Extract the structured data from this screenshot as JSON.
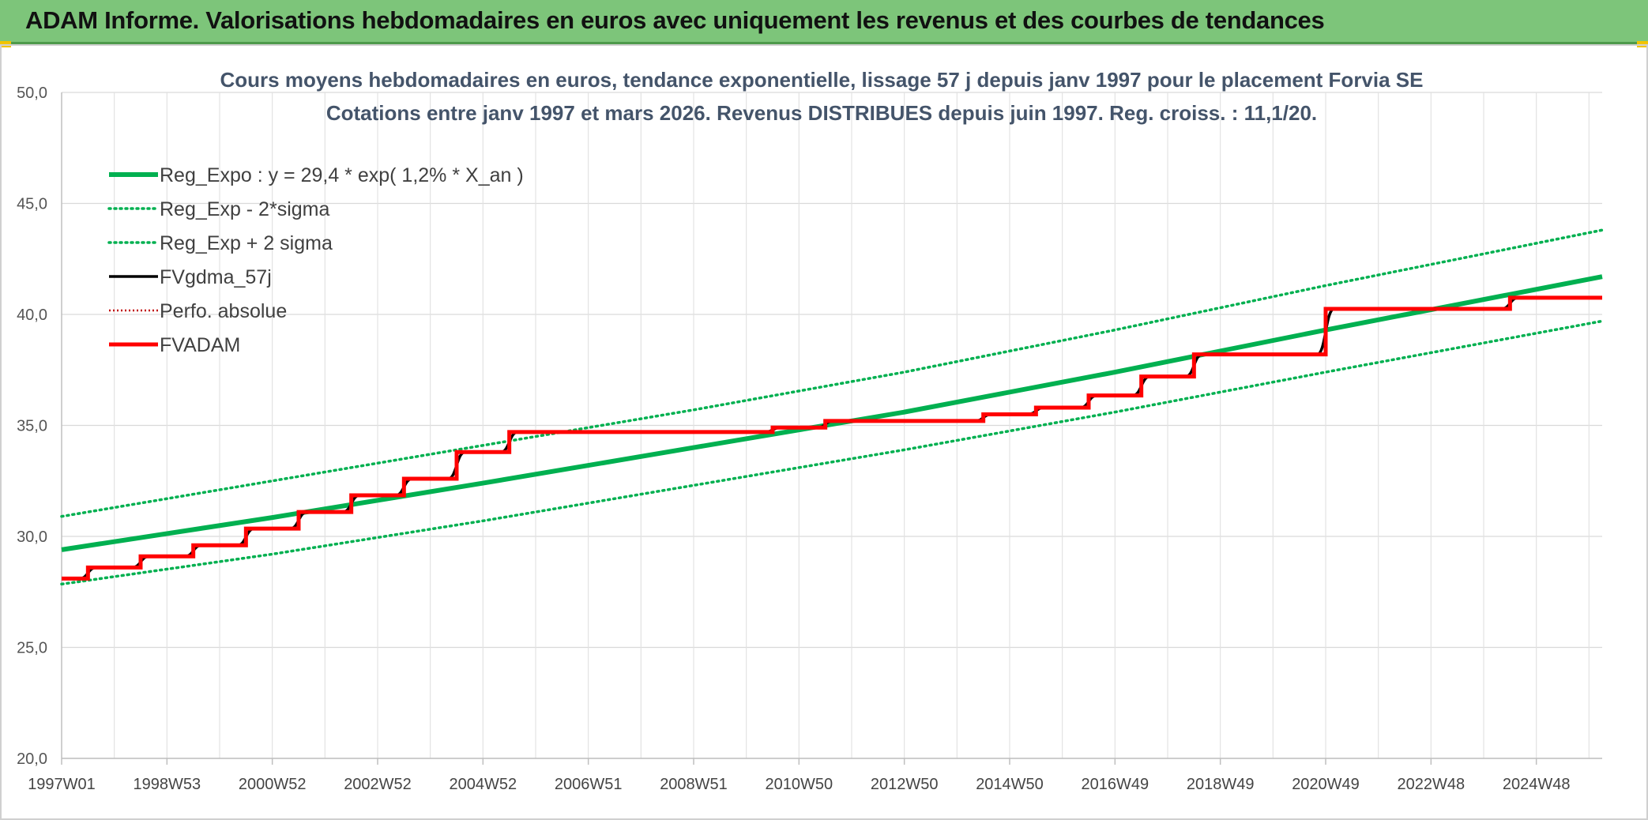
{
  "banner": {
    "title": "ADAM Informe. Valorisations hebdomadaires en euros avec uniquement les revenus et des courbes de tendances"
  },
  "colors": {
    "banner": "#7dc57a",
    "reg": "#00b050",
    "black": "#000000",
    "red": "#ff0000",
    "perfo": "#c00000"
  },
  "chart_data": {
    "type": "line",
    "title": "Cours moyens hebdomadaires en euros, tendance exponentielle, lissage 57 j depuis janv 1997 pour le placement Forvia SE",
    "subtitle": "Cotations entre janv 1997 et mars 2026. Revenus DISTRIBUES depuis juin 1997. Reg. croiss. : 11,1/20.",
    "xlabel": "",
    "ylabel": "",
    "ylim": [
      20,
      50
    ],
    "yticks": [
      "20,0",
      "25,0",
      "30,0",
      "35,0",
      "40,0",
      "45,0",
      "50,0"
    ],
    "xlim": [
      1997.0,
      2026.25
    ],
    "xticks": [
      {
        "year": 1997,
        "label": "1997W01"
      },
      {
        "year": 1999,
        "label": "1998W53"
      },
      {
        "year": 2001,
        "label": "2000W52"
      },
      {
        "year": 2003,
        "label": "2002W52"
      },
      {
        "year": 2005,
        "label": "2004W52"
      },
      {
        "year": 2007,
        "label": "2006W51"
      },
      {
        "year": 2009,
        "label": "2008W51"
      },
      {
        "year": 2011,
        "label": "2010W50"
      },
      {
        "year": 2013,
        "label": "2012W50"
      },
      {
        "year": 2015,
        "label": "2014W50"
      },
      {
        "year": 2017,
        "label": "2016W49"
      },
      {
        "year": 2019,
        "label": "2018W49"
      },
      {
        "year": 2021,
        "label": "2020W49"
      },
      {
        "year": 2023,
        "label": "2022W48"
      },
      {
        "year": 2025,
        "label": "2024W48"
      }
    ],
    "grid": true,
    "legend": "top-left",
    "series": [
      {
        "name": "Reg_Expo : y = 29,4 * exp( 1,2% *  X_an )",
        "style": "thick-green",
        "x": [
          1997.0,
          2001.0,
          2005.0,
          2009.0,
          2013.0,
          2017.0,
          2021.0,
          2026.25
        ],
        "values": [
          29.4,
          30.85,
          32.4,
          34.0,
          35.6,
          37.4,
          39.3,
          41.7
        ]
      },
      {
        "name": "Reg_Exp - 2*sigma",
        "style": "dotted-green",
        "x": [
          1997.0,
          2001.0,
          2005.0,
          2009.0,
          2013.0,
          2017.0,
          2021.0,
          2026.25
        ],
        "values": [
          27.85,
          29.2,
          30.7,
          32.3,
          33.9,
          35.6,
          37.4,
          39.7
        ]
      },
      {
        "name": "Reg_Exp + 2 sigma",
        "style": "dotted-green",
        "x": [
          1997.0,
          2001.0,
          2005.0,
          2009.0,
          2013.0,
          2017.0,
          2021.0,
          2026.25
        ],
        "values": [
          30.9,
          32.5,
          34.1,
          35.7,
          37.4,
          39.3,
          41.3,
          43.8
        ]
      },
      {
        "name": "FVgdma_57j",
        "style": "black",
        "steps": "smooth",
        "x": [
          1997.0,
          1997.5,
          1998.5,
          1999.5,
          2000.5,
          2001.5,
          2002.5,
          2003.5,
          2004.5,
          2005.5,
          2010.5,
          2011.5,
          2014.5,
          2015.5,
          2016.5,
          2017.5,
          2018.5,
          2021.0,
          2024.5
        ],
        "values": [
          28.1,
          28.6,
          29.1,
          29.6,
          30.35,
          31.1,
          31.85,
          32.6,
          33.8,
          34.7,
          34.9,
          35.2,
          35.5,
          35.8,
          36.35,
          37.2,
          38.2,
          40.25,
          40.75
        ]
      },
      {
        "name": "Perfo. absolue",
        "style": "dotted-red",
        "x": [],
        "values": []
      },
      {
        "name": "FVADAM",
        "style": "thick-red",
        "x": [
          1997.0,
          1997.5,
          1998.5,
          1999.5,
          2000.5,
          2001.5,
          2002.5,
          2003.5,
          2004.5,
          2005.5,
          2010.5,
          2011.5,
          2014.5,
          2015.5,
          2016.5,
          2017.5,
          2018.5,
          2021.0,
          2024.5
        ],
        "values": [
          28.1,
          28.6,
          29.1,
          29.6,
          30.35,
          31.1,
          31.85,
          32.6,
          33.8,
          34.7,
          34.9,
          35.2,
          35.5,
          35.8,
          36.35,
          37.2,
          38.2,
          40.25,
          40.75
        ]
      }
    ]
  }
}
